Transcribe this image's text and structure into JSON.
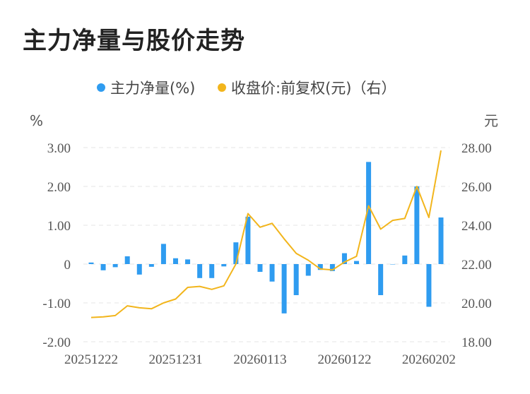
{
  "title": "主力净量与股价走势",
  "chart_data": {
    "type": "bar+line",
    "left_unit": "%",
    "right_unit": "元",
    "legend": [
      {
        "label": "主力净量(%)",
        "color": "#2f9cf0",
        "marker": "dot"
      },
      {
        "label": "收盘价:前复权(元)（右）",
        "color": "#f2b51c",
        "marker": "dot"
      }
    ],
    "left_axis": {
      "min": -2,
      "max": 3,
      "ticks": [
        3,
        2,
        1,
        0,
        -1,
        -2
      ],
      "tick_labels": [
        "3.00",
        "2.00",
        "1.00",
        "0",
        "-1.00",
        "-2.00"
      ]
    },
    "right_axis": {
      "min": 18,
      "max": 28,
      "ticks": [
        28,
        26,
        24,
        22,
        20,
        18
      ],
      "tick_labels": [
        "28.00",
        "26.00",
        "24.00",
        "22.00",
        "20.00",
        "18.00"
      ]
    },
    "x_tick_labels": [
      "20251222",
      "20251231",
      "20260113",
      "20260122",
      "20260202"
    ],
    "x_tick_indices": [
      0,
      7,
      14,
      21,
      28
    ],
    "bar_series": {
      "name": "主力净量(%)",
      "color": "#2f9cf0",
      "values": [
        0.04,
        -0.16,
        -0.08,
        0.2,
        -0.27,
        -0.07,
        0.52,
        0.15,
        0.12,
        -0.36,
        -0.36,
        -0.06,
        0.56,
        1.22,
        -0.2,
        -0.45,
        -1.27,
        -0.8,
        -0.3,
        -0.15,
        -0.18,
        0.28,
        0.08,
        2.63,
        -0.8,
        0.0,
        0.22,
        2.0,
        -1.1,
        1.2
      ]
    },
    "line_series": {
      "name": "收盘价:前复权(元)",
      "color": "#f2b51c",
      "values": [
        19.25,
        19.28,
        19.35,
        19.85,
        19.75,
        19.7,
        20.0,
        20.2,
        20.8,
        20.85,
        20.7,
        20.88,
        22.0,
        24.6,
        23.9,
        24.1,
        23.3,
        22.55,
        22.2,
        21.75,
        21.7,
        22.1,
        22.4,
        25.0,
        23.8,
        24.25,
        24.35,
        26.0,
        24.4,
        27.85
      ]
    }
  }
}
